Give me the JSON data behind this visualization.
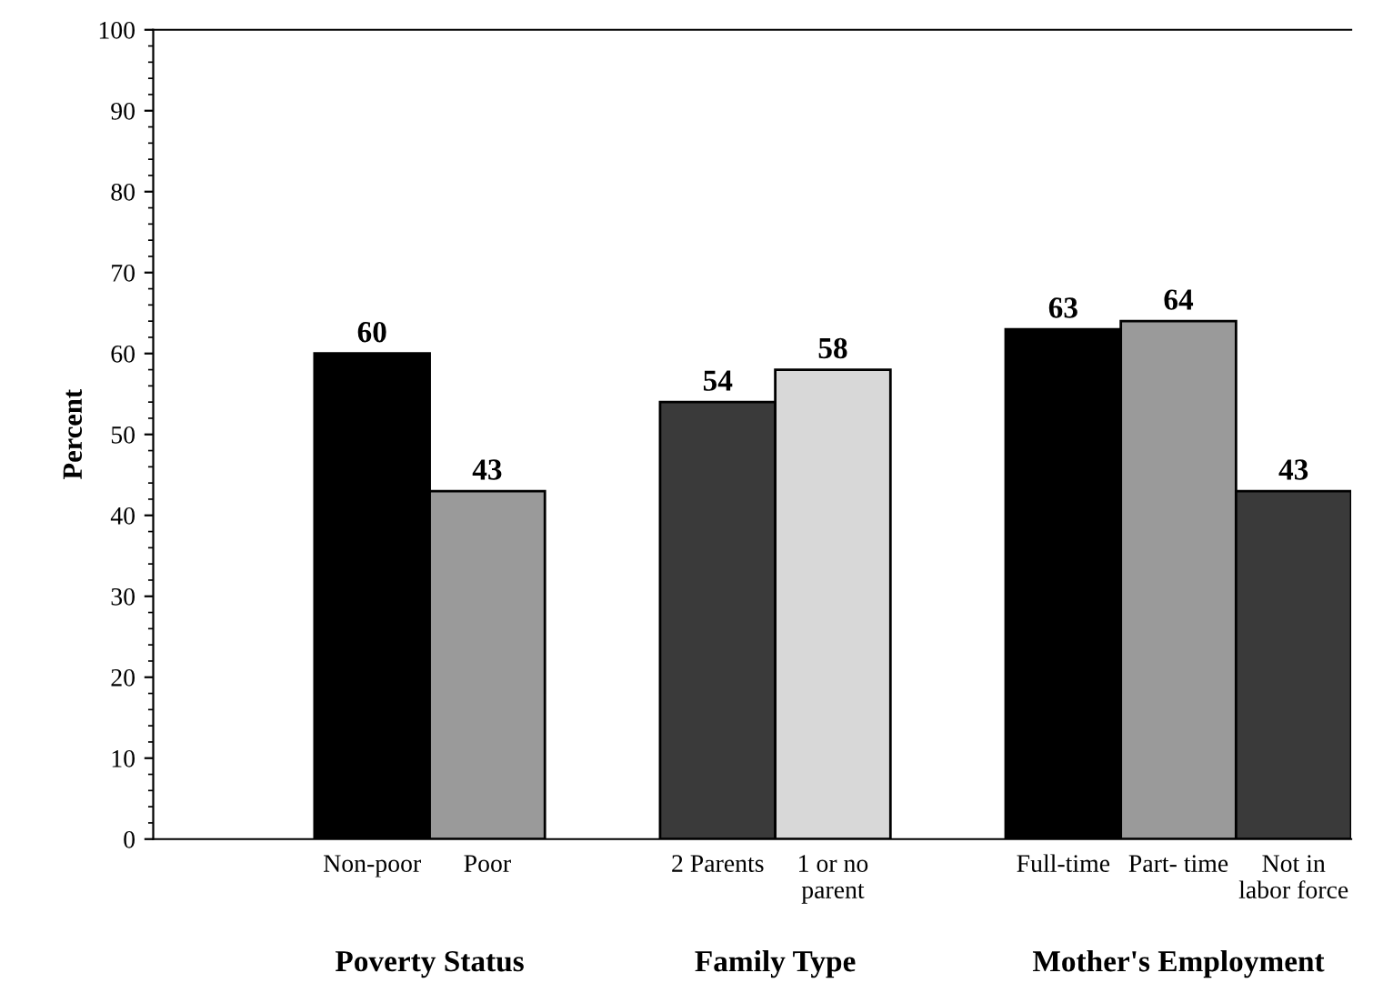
{
  "chart_data": {
    "type": "bar",
    "categories": [
      "Non-poor",
      "Poor",
      null,
      "2 Parents",
      "1 or no\nparent",
      null,
      "Full-time",
      "Part- time",
      "Not in\nlabor force"
    ],
    "values": [
      60,
      43,
      null,
      54,
      58,
      null,
      63,
      64,
      43
    ],
    "colors": [
      "#000000",
      "#9a9a9a",
      null,
      "#3a3a3a",
      "#d8d8d8",
      null,
      "#000000",
      "#9a9a9a",
      "#3a3a3a"
    ],
    "ylabel": "Percent",
    "annotations": [
      "Poverty Status",
      "Family Type",
      "Mother's Employment"
    ],
    "ylim": [
      0,
      100
    ],
    "yticks": [
      0,
      10,
      20,
      30,
      40,
      50,
      60,
      70,
      80,
      90,
      100
    ],
    "data_labels": true,
    "grid": false,
    "legend": false
  }
}
